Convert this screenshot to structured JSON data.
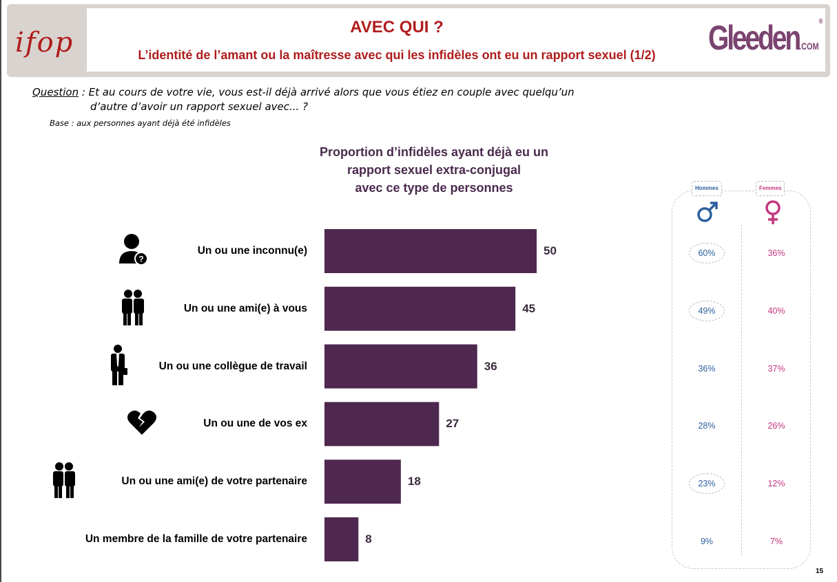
{
  "header": {
    "title": "AVEC QUI ?",
    "subtitle": "L’identité de l’amant ou la maîtresse avec qui les infidèles ont eu un rapport sexuel (1/2)",
    "ifop_logo": "ifop",
    "gleeden_logo": "Gleeden",
    "gleeden_com": ".COM",
    "gleeden_reg": "®"
  },
  "question": {
    "label": "Question",
    "line1": " : Et au cours de votre vie, vous est-il déjà arrivé alors que vous étiez en couple avec quelqu’un",
    "line2": "d’autre d’avoir un rapport sexuel avec... ?"
  },
  "base": "Base : aux personnes ayant déjà été infidèles",
  "gender": {
    "men_label": "Hommes",
    "women_label": "Femmes",
    "men_color": "#2b5f9e",
    "women_color": "#c2377f"
  },
  "page_number": "15",
  "chart_data": {
    "type": "bar",
    "orientation": "horizontal",
    "title": "Proportion d’infidèles ayant déjà eu un rapport sexuel extra-conjugal avec ce type de personnes",
    "title_lines": [
      "Proportion d’infidèles ayant déjà eu un",
      "rapport sexuel extra-conjugal",
      "avec ce type de personnes"
    ],
    "categories": [
      "Un ou une inconnu(e)",
      "Un ou une ami(e) à vous",
      "Un ou une collègue de travail",
      "Un ou une de vos ex",
      "Un ou une ami(e) de votre partenaire",
      "Un membre de la famille de votre partenaire"
    ],
    "values": [
      50,
      45,
      36,
      27,
      18,
      8
    ],
    "value_labels": [
      "50",
      "45",
      "36",
      "27",
      "18",
      "8"
    ],
    "icons": [
      "unknown-person-icon",
      "friends-icon",
      "colleague-icon",
      "broken-heart-icon",
      "partner-friends-icon",
      ""
    ],
    "bar_color": "#4e284e",
    "men": [
      "60%",
      "49%",
      "36%",
      "28%",
      "23%",
      "9%"
    ],
    "women": [
      "36%",
      "40%",
      "37%",
      "26%",
      "12%",
      "7%"
    ],
    "men_highlight": [
      true,
      true,
      false,
      false,
      true,
      false
    ],
    "xlim": [
      0,
      100
    ]
  }
}
